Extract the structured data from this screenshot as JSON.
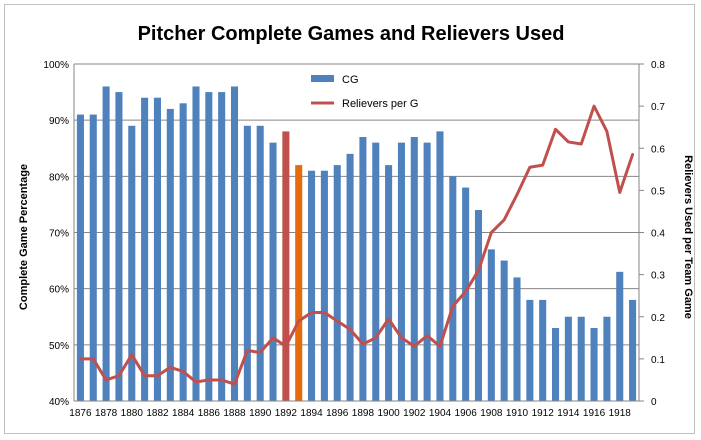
{
  "chart_data": {
    "type": "bar",
    "title": "Pitcher Complete Games and Relievers Used",
    "ylabel": "Complete Game Percentage",
    "y2label": "Relievers Used per Team Game",
    "ylim": [
      40,
      100
    ],
    "ylim_unit": "%",
    "y2lim": [
      0,
      0.8
    ],
    "yticks": [
      "40%",
      "50%",
      "60%",
      "70%",
      "80%",
      "90%",
      "100%"
    ],
    "y2ticks": [
      "0",
      "0.1",
      "0.2",
      "0.3",
      "0.4",
      "0.5",
      "0.6",
      "0.7",
      "0.8"
    ],
    "xtick_labels": [
      "1876",
      "1878",
      "1880",
      "1882",
      "1884",
      "1886",
      "1888",
      "1890",
      "1892",
      "1894",
      "1896",
      "1898",
      "1900",
      "1902",
      "1904",
      "1906",
      "1908",
      "1910",
      "1912",
      "1914",
      "1916",
      "1918"
    ],
    "grid": true,
    "legend_position": "top-center",
    "categories": [
      "1876",
      "1877",
      "1878",
      "1879",
      "1880",
      "1881",
      "1882",
      "1883",
      "1884",
      "1885",
      "1886",
      "1887",
      "1888",
      "1889",
      "1890",
      "1891",
      "1892",
      "1893",
      "1894",
      "1895",
      "1896",
      "1897",
      "1898",
      "1899",
      "1900",
      "1901",
      "1902",
      "1903",
      "1904",
      "1905",
      "1906",
      "1907",
      "1908",
      "1909",
      "1910",
      "1911",
      "1912",
      "1913",
      "1914",
      "1915",
      "1916",
      "1917",
      "1918",
      "1919"
    ],
    "series": [
      {
        "name": "CG",
        "kind": "bar",
        "axis": "left",
        "color": "#4f81bd",
        "values": [
          91,
          91,
          96,
          95,
          89,
          94,
          94,
          92,
          93,
          96,
          95,
          95,
          96,
          89,
          89,
          86,
          88,
          82,
          81,
          81,
          82,
          84,
          87,
          86,
          82,
          86,
          87,
          86,
          88,
          80,
          78,
          74,
          67,
          65,
          62,
          58,
          58,
          53,
          55,
          55,
          53,
          55,
          63,
          58
        ]
      },
      {
        "name": "Relievers per G",
        "kind": "line",
        "axis": "right",
        "color": "#c0504d",
        "values": [
          0.1,
          0.1,
          0.05,
          0.06,
          0.11,
          0.06,
          0.06,
          0.08,
          0.07,
          0.045,
          0.05,
          0.05,
          0.04,
          0.12,
          0.115,
          0.15,
          0.13,
          0.19,
          0.21,
          0.21,
          0.19,
          0.17,
          0.135,
          0.15,
          0.195,
          0.15,
          0.13,
          0.155,
          0.13,
          0.225,
          0.26,
          0.31,
          0.4,
          0.43,
          0.49,
          0.555,
          0.56,
          0.645,
          0.615,
          0.61,
          0.7,
          0.64,
          0.495,
          0.585
        ]
      }
    ],
    "highlight_bars": [
      {
        "category": "1892",
        "color": "#c0504d"
      },
      {
        "category": "1893",
        "color": "#e46c0a"
      }
    ]
  }
}
